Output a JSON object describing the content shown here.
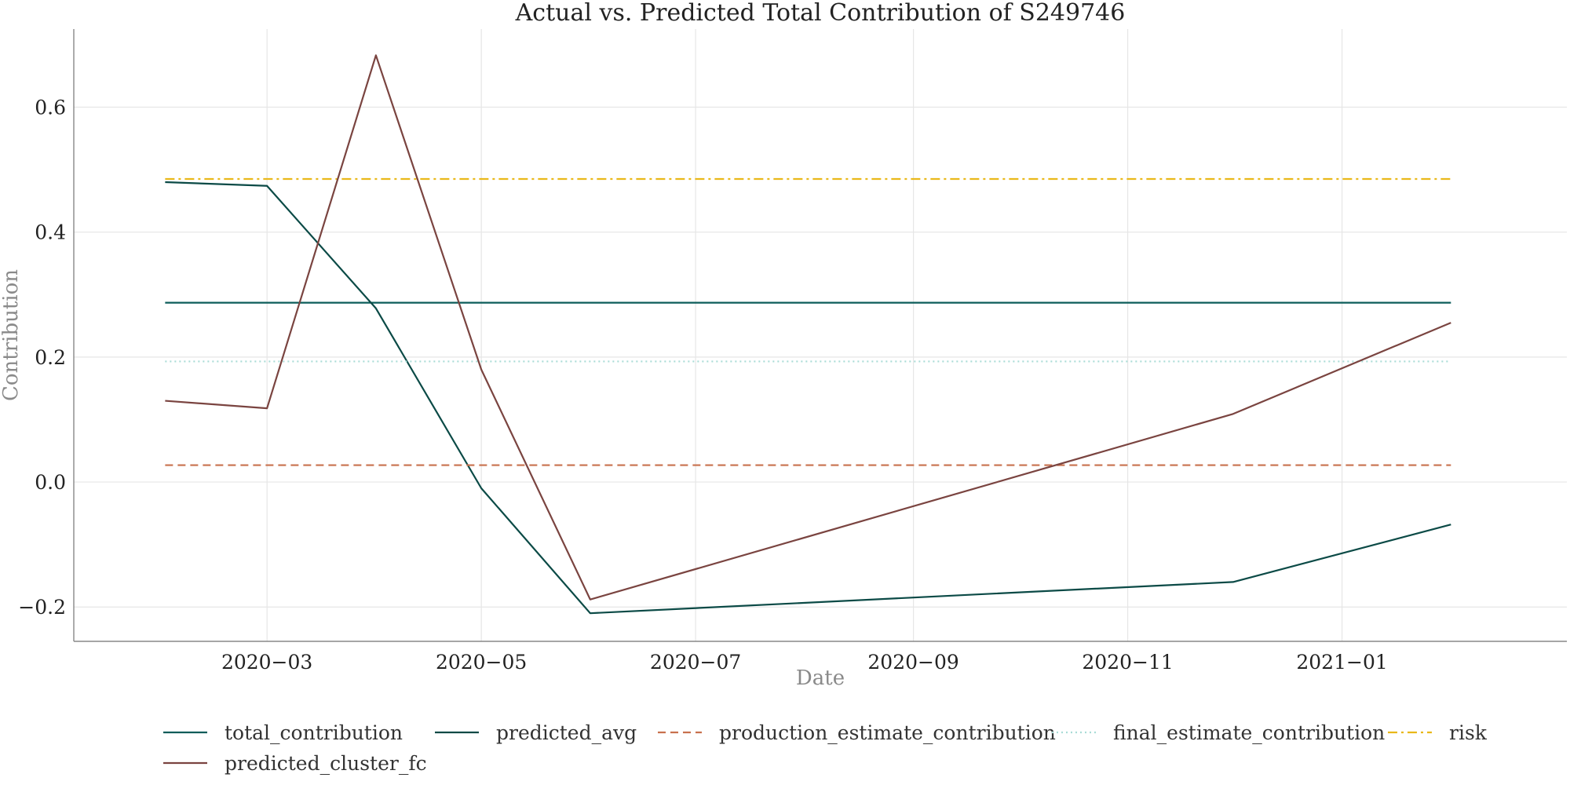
{
  "chart_data": {
    "type": "line",
    "title": "Actual vs. Predicted Total Contribution of S249746",
    "xlabel": "Date",
    "ylabel": "Contribution",
    "x": [
      "2020-02-01",
      "2020-03-01",
      "2020-04-01",
      "2020-05-01",
      "2020-06-01",
      "2020-12-01",
      "2021-02-01"
    ],
    "x_ticks": [
      "2020-03-01",
      "2020-05-01",
      "2020-07-01",
      "2020-09-01",
      "2020-11-01",
      "2021-01-01"
    ],
    "x_tick_labels": [
      "2020−03",
      "2020−05",
      "2020−07",
      "2020−09",
      "2020−11",
      "2021−01"
    ],
    "xlim": [
      "2020-01-06",
      "2021-03-06"
    ],
    "ylim": [
      -0.255,
      0.725
    ],
    "y_ticks": [
      -0.2,
      0.0,
      0.2,
      0.4,
      0.6
    ],
    "y_tick_labels": [
      "−0.2",
      "0.0",
      "0.2",
      "0.4",
      "0.6"
    ],
    "grid": true,
    "legend_position": "bottom",
    "series": [
      {
        "name": "total_contribution",
        "color": "#0b5d5a",
        "dash": "solid",
        "values": [
          0.287,
          0.287,
          0.287,
          0.287,
          0.287,
          0.287,
          0.287
        ]
      },
      {
        "name": "predicted_avg",
        "color": "#0b4a46",
        "dash": "solid",
        "values": [
          0.48,
          0.474,
          0.278,
          -0.01,
          -0.21,
          -0.16,
          -0.068
        ]
      },
      {
        "name": "production_estimate_contribution",
        "color": "#c8714e",
        "dash": "dashed",
        "values": [
          0.027,
          0.027,
          0.027,
          0.027,
          0.027,
          0.027,
          0.027
        ]
      },
      {
        "name": "final_estimate_contribution",
        "color": "#a9dcd6",
        "dash": "dotted",
        "values": [
          0.193,
          0.193,
          0.193,
          0.193,
          0.193,
          0.193,
          0.193
        ]
      },
      {
        "name": "risk",
        "color": "#e9b81a",
        "dash": "dashdot",
        "values": [
          0.485,
          0.485,
          0.485,
          0.485,
          0.485,
          0.485,
          0.485
        ]
      },
      {
        "name": "predicted_cluster_fc",
        "color": "#7a4440",
        "dash": "solid",
        "values": [
          0.13,
          0.118,
          0.683,
          0.18,
          -0.188,
          0.109,
          0.255
        ]
      }
    ]
  }
}
